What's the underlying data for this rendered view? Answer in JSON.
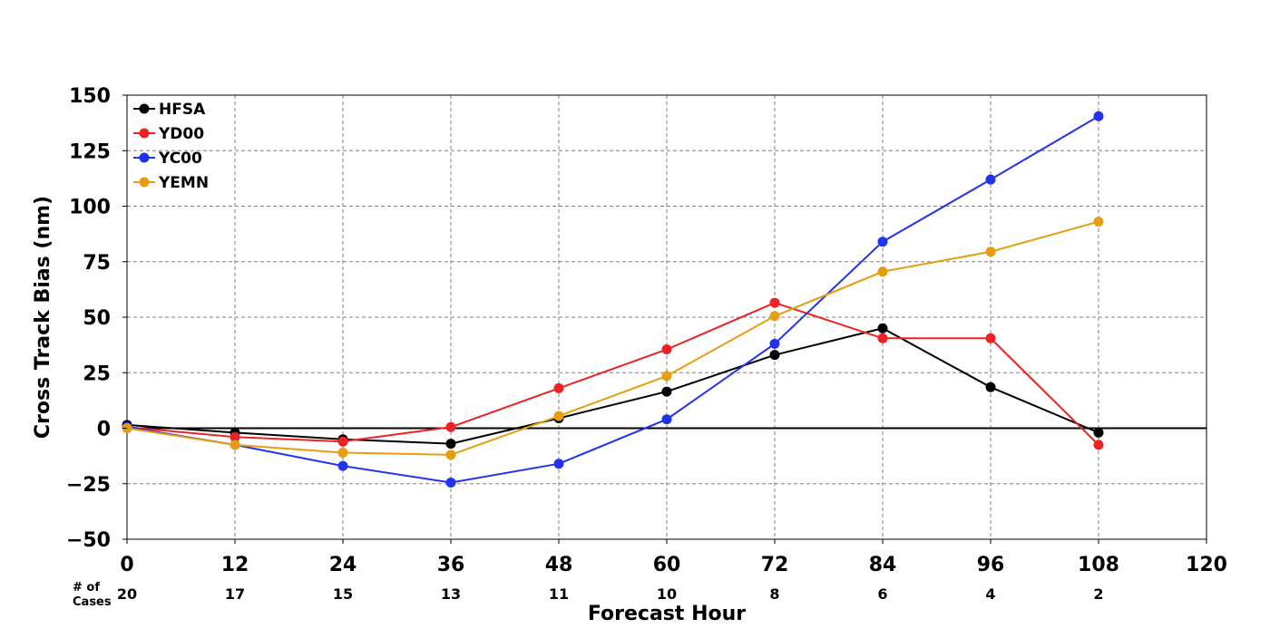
{
  "chart_data": {
    "type": "line",
    "title": "",
    "xlabel": "Forecast Hour",
    "ylabel": "Cross Track Bias (nm)",
    "xlim": [
      0,
      120
    ],
    "ylim": [
      -50,
      150
    ],
    "x_ticks": [
      0,
      12,
      24,
      36,
      48,
      60,
      72,
      84,
      96,
      108,
      120
    ],
    "y_ticks": [
      -50,
      -25,
      0,
      25,
      50,
      75,
      100,
      125,
      150
    ],
    "y_tick_labels": [
      "−50",
      "−25",
      "0",
      "25",
      "50",
      "75",
      "100",
      "125",
      "150"
    ],
    "grid": true,
    "legend_position": "top-left",
    "x": [
      0,
      12,
      24,
      36,
      48,
      60,
      72,
      84,
      96,
      108
    ],
    "series": [
      {
        "name": "HFSA",
        "color": "#000000",
        "values": [
          1.5,
          -2,
          -5,
          -7,
          4.5,
          16.5,
          33,
          45,
          18.5,
          -2
        ]
      },
      {
        "name": "YD00",
        "color": "#ee2222",
        "values": [
          0.5,
          -4,
          -6,
          0.5,
          18,
          35.5,
          56.5,
          40.5,
          40.5,
          -7.5
        ]
      },
      {
        "name": "YC00",
        "color": "#2233ee",
        "values": [
          0.5,
          -7.5,
          -17,
          -24.5,
          -16,
          4,
          38,
          84,
          112,
          140.5
        ]
      },
      {
        "name": "YEMN",
        "color": "#e69e0f",
        "values": [
          0,
          -7.5,
          -11,
          -12,
          5.5,
          23.5,
          50.5,
          70.5,
          79.5,
          93
        ]
      }
    ],
    "cases": {
      "header": [
        "# of",
        "Cases"
      ],
      "values": [
        "20",
        "17",
        "15",
        "13",
        "11",
        "10",
        "8",
        "6",
        "4",
        "2"
      ]
    }
  }
}
